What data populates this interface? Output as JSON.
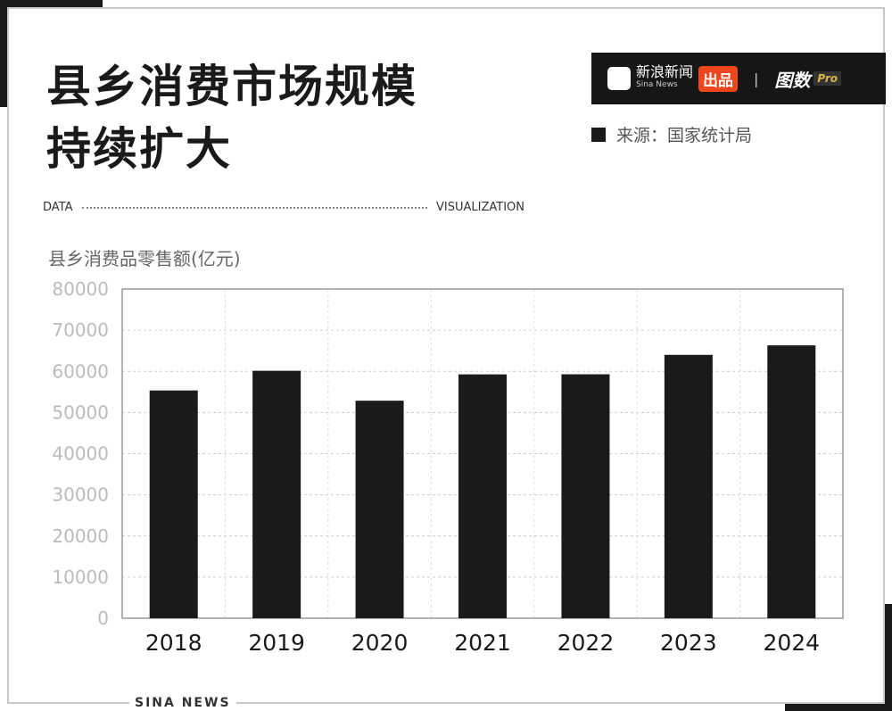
{
  "title_lines": [
    "县乡消费市场规模",
    "持续扩大"
  ],
  "subtitle_left": "DATA",
  "subtitle_right": "VISUALIZATION",
  "brand": {
    "sina_logo": "sina",
    "sina_cn": "新浪新闻",
    "sina_en": "Sina News",
    "badge": "出品",
    "separator": "|",
    "product": "图数",
    "pro": "Pro"
  },
  "source": "来源：国家统计局",
  "footer": "SINA NEWS",
  "colors": {
    "bar": "#1a1a1a",
    "accent": "#f0461e"
  },
  "chart_data": {
    "type": "bar",
    "title": "县乡消费市场规模持续扩大",
    "ylabel": "县乡消费品零售额(亿元)",
    "xlabel": "",
    "categories": [
      "2018",
      "2019",
      "2020",
      "2021",
      "2022",
      "2023",
      "2024"
    ],
    "values": [
      55350,
      60138,
      52862,
      59265,
      59285,
      64005,
      66317
    ],
    "ylim": [
      0,
      80000
    ],
    "yticks": [
      "0",
      "10000",
      "20000",
      "30000",
      "40000",
      "50000",
      "60000",
      "70000",
      "80000"
    ],
    "grid": true
  }
}
